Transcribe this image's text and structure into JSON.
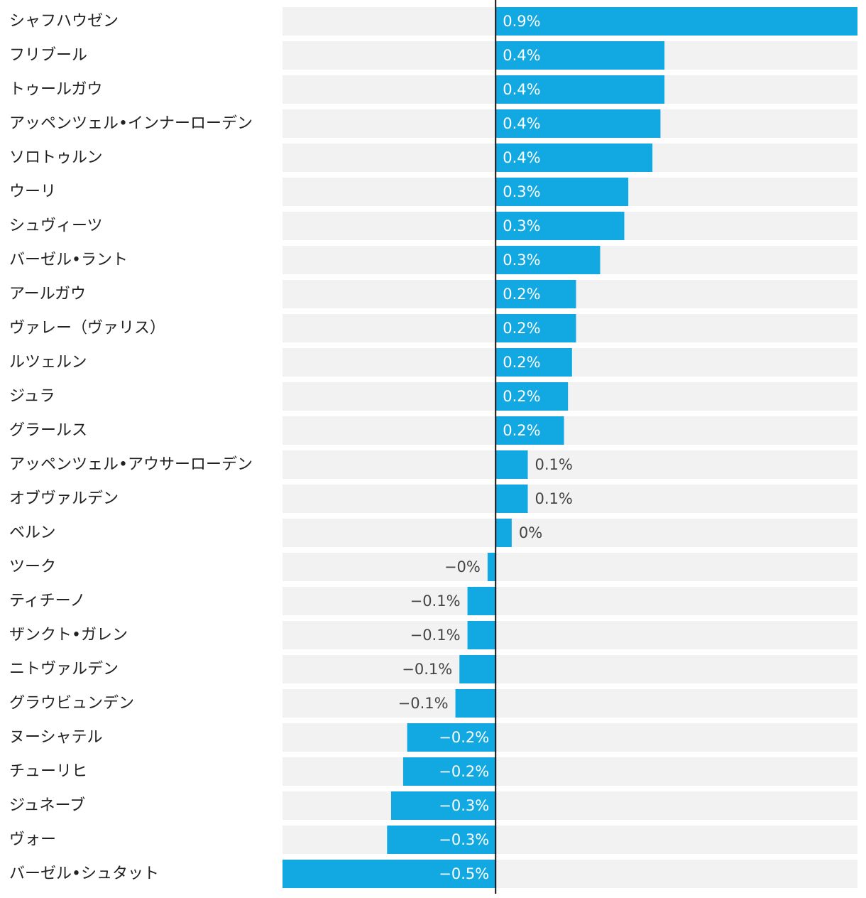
{
  "chart_data": {
    "type": "bar",
    "orientation": "horizontal",
    "categories": [
      "シャフハウゼン",
      "フリブール",
      "トゥールガウ",
      "アッペンツェル•インナーローデン",
      "ソロトゥルン",
      "ウーリ",
      "シュヴィーツ",
      "バーゼル•ラント",
      "アールガウ",
      "ヴァレー（ヴァリス）",
      "ルツェルン",
      "ジュラ",
      "グラールス",
      "アッペンツェル•アウサーローデン",
      "オブヴァルデン",
      "ベルン",
      "ツーク",
      "ティチーノ",
      "ザンクト•ガレン",
      "ニトヴァルデン",
      "グラウビュンデン",
      "ヌーシャテル",
      "チューリヒ",
      "ジュネーブ",
      "ヴォー",
      "バーゼル•シュタット"
    ],
    "values": [
      0.9,
      0.42,
      0.42,
      0.41,
      0.39,
      0.33,
      0.32,
      0.26,
      0.2,
      0.2,
      0.19,
      0.18,
      0.17,
      0.08,
      0.08,
      0.04,
      -0.02,
      -0.07,
      -0.07,
      -0.09,
      -0.1,
      -0.22,
      -0.23,
      -0.26,
      -0.27,
      -0.53
    ],
    "value_labels": [
      "0.9%",
      "0.4%",
      "0.4%",
      "0.4%",
      "0.4%",
      "0.3%",
      "0.3%",
      "0.3%",
      "0.2%",
      "0.2%",
      "0.2%",
      "0.2%",
      "0.2%",
      "0.1%",
      "0.1%",
      "0%",
      "−0%",
      "−0.1%",
      "−0.1%",
      "−0.1%",
      "−0.1%",
      "−0.2%",
      "−0.2%",
      "−0.3%",
      "−0.3%",
      "−0.5%"
    ],
    "color": "#12a9e2",
    "xlim": [
      -0.53,
      0.9
    ]
  }
}
